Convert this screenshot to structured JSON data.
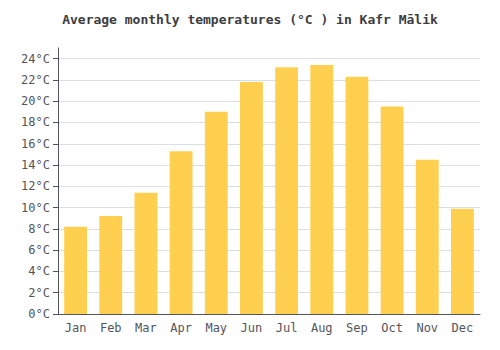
{
  "chart_data": {
    "type": "bar",
    "title": "Average monthly temperatures (°C ) in Kafr Mālik",
    "categories": [
      "Jan",
      "Feb",
      "Mar",
      "Apr",
      "May",
      "Jun",
      "Jul",
      "Aug",
      "Sep",
      "Oct",
      "Nov",
      "Dec"
    ],
    "values": [
      8.2,
      9.2,
      11.4,
      15.3,
      19.0,
      21.8,
      23.2,
      23.4,
      22.3,
      19.5,
      14.5,
      9.9
    ],
    "color": "#FFD050",
    "ylim": [
      0,
      25
    ],
    "yticks": [
      {
        "value": 0,
        "label": "0°C"
      },
      {
        "value": 2,
        "label": "2°C"
      },
      {
        "value": 4,
        "label": "4°C"
      },
      {
        "value": 6,
        "label": "6°C"
      },
      {
        "value": 8,
        "label": "8°C"
      },
      {
        "value": 10,
        "label": "10°C"
      },
      {
        "value": 12,
        "label": "12°C"
      },
      {
        "value": 14,
        "label": "14°C"
      },
      {
        "value": 16,
        "label": "16°C"
      },
      {
        "value": 18,
        "label": "18°C"
      },
      {
        "value": 20,
        "label": "20°C"
      },
      {
        "value": 22,
        "label": "22°C"
      },
      {
        "value": 24,
        "label": "24°C"
      }
    ],
    "grid": true
  }
}
